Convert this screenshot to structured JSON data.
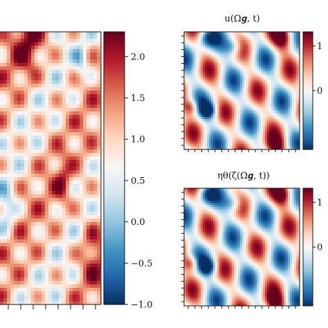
{
  "chart_data": [
    {
      "type": "heatmap",
      "panel": "large-field",
      "title": "",
      "colormap": "RdBu_r",
      "colorbar": {
        "vmin": -1.0,
        "vmax": 2.3,
        "ticks": [
          2.0,
          1.5,
          1.0,
          0.5,
          0.0,
          -0.5,
          -1.0
        ],
        "tick_labels": [
          "2.0",
          "1.5",
          "1.0",
          "0.5",
          "0.0",
          "−0.5",
          "−1.0"
        ]
      },
      "description_values": "blobby pattern of alternating high (red, up to ~2.2) and mid (~0.8) values with a few low (blue, ~-0.2) regions"
    },
    {
      "type": "heatmap",
      "panel": "top-right",
      "title": "u(Ω𝒈, t)",
      "colormap": "RdBu_r",
      "colorbar": {
        "ticks": [
          1,
          0
        ],
        "tick_labels": [
          "1",
          "0"
        ]
      }
    },
    {
      "type": "heatmap",
      "panel": "bottom-right",
      "title": "ηθ(ζ(Ω𝒈, t))",
      "colormap": "RdBu_r",
      "colorbar": {
        "ticks": [
          1,
          0
        ],
        "tick_labels": [
          "1",
          "0"
        ]
      }
    }
  ]
}
